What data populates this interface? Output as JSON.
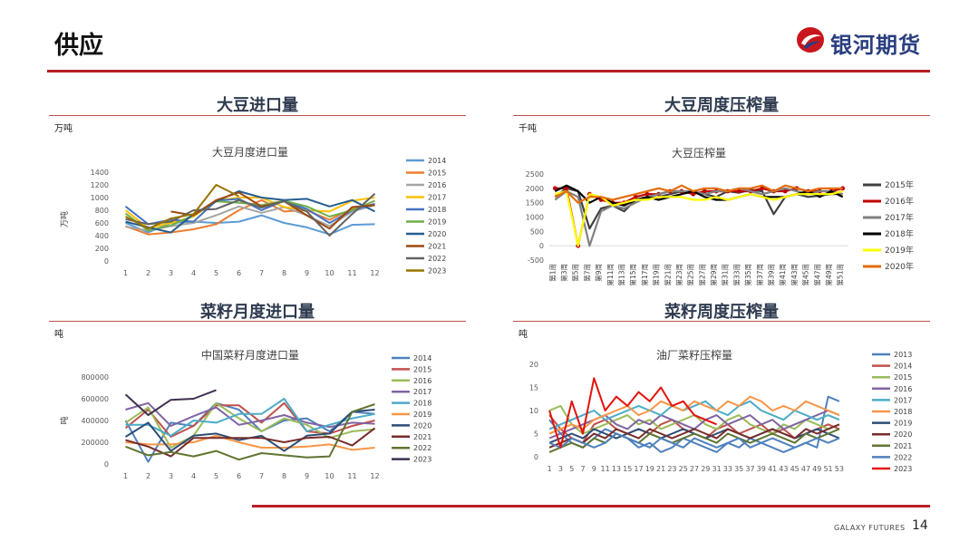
{
  "page": {
    "title": "供应",
    "brand": "银河期货",
    "footer_brand": "GALAXY FUTURES",
    "page_number": "14"
  },
  "colors": {
    "accent": "#b81e23",
    "logo_blue": "#2a3e80"
  },
  "panels": [
    {
      "heading": "大豆进口量",
      "unit": "万吨"
    },
    {
      "heading": "大豆周度压榨量",
      "unit": "千吨"
    },
    {
      "heading": "菜籽月度进口量",
      "unit": "吨"
    },
    {
      "heading": "菜籽周度压榨量",
      "unit": "吨"
    }
  ],
  "chart_data": [
    {
      "type": "line",
      "title": "大豆月度进口量",
      "ylabel": "万吨",
      "x": [
        1,
        2,
        3,
        4,
        5,
        6,
        7,
        8,
        9,
        10,
        11,
        12
      ],
      "ylim": [
        0,
        1400
      ],
      "yticks": [
        0,
        200,
        400,
        600,
        800,
        1000,
        1200,
        1400
      ],
      "legend": "right",
      "series": [
        {
          "name": "2014",
          "color": "#5b9bd5",
          "values": [
            600,
            450,
            600,
            620,
            600,
            620,
            720,
            600,
            530,
            420,
            570,
            580
          ]
        },
        {
          "name": "2015",
          "color": "#ed7d31",
          "values": [
            550,
            420,
            450,
            500,
            580,
            800,
            960,
            780,
            800,
            650,
            820,
            900
          ]
        },
        {
          "name": "2016",
          "color": "#a5a5a5",
          "values": [
            540,
            480,
            550,
            600,
            720,
            860,
            760,
            850,
            720,
            550,
            780,
            880
          ]
        },
        {
          "name": "2017",
          "color": "#ffc000",
          "values": [
            800,
            520,
            600,
            700,
            950,
            1000,
            1000,
            850,
            800,
            780,
            950,
            1000
          ]
        },
        {
          "name": "2018",
          "color": "#4472c4",
          "values": [
            860,
            580,
            650,
            620,
            950,
            980,
            800,
            950,
            820,
            600,
            800,
            900
          ]
        },
        {
          "name": "2019",
          "color": "#70ad47",
          "values": [
            750,
            480,
            560,
            720,
            940,
            920,
            880,
            950,
            860,
            700,
            800,
            950
          ]
        },
        {
          "name": "2020",
          "color": "#255e91",
          "values": [
            620,
            530,
            450,
            740,
            940,
            1100,
            1000,
            960,
            980,
            860,
            960,
            780
          ]
        },
        {
          "name": "2021",
          "color": "#9e480e",
          "values": [
            null,
            null,
            780,
            720,
            960,
            1080,
            860,
            940,
            720,
            510,
            850,
            880
          ]
        },
        {
          "name": "2022",
          "color": "#636363",
          "values": [
            660,
            580,
            620,
            800,
            820,
            960,
            840,
            940,
            780,
            400,
            740,
            1060
          ]
        },
        {
          "name": "2023",
          "color": "#997300",
          "values": [
            700,
            510,
            670,
            740,
            1200,
            1020,
            null,
            null,
            null,
            null,
            null,
            null
          ]
        }
      ]
    },
    {
      "type": "line",
      "title": "大豆压榨量",
      "xlabel": "",
      "categories": [
        "第1周",
        "第3周",
        "第5周",
        "第7周",
        "第9周",
        "第11周",
        "第13周",
        "第15周",
        "第17周",
        "第19周",
        "第21周",
        "第23周",
        "第25周",
        "第27周",
        "第29周",
        "第31周",
        "第33周",
        "第35周",
        "第37周",
        "第39周",
        "第41周",
        "第43周",
        "第45周",
        "第47周",
        "第49周",
        "第51周"
      ],
      "ylim": [
        -500,
        2500
      ],
      "yticks": [
        -500,
        0,
        500,
        1000,
        1500,
        2000,
        2500
      ],
      "legend": "right",
      "series": [
        {
          "name": "2015年",
          "color": "#404040",
          "values": [
            1700,
            2000,
            1900,
            600,
            1300,
            1400,
            1200,
            1600,
            1650,
            1700,
            1800,
            1900,
            1850,
            1800,
            1700,
            1900,
            1850,
            1950,
            1900,
            1100,
            1700,
            1800,
            1700,
            1750,
            1800,
            1800
          ]
        },
        {
          "name": "2016年",
          "color": "#c00000",
          "values": [
            2000,
            2000,
            0,
            1800,
            1600,
            1500,
            1500,
            1700,
            1800,
            1800,
            1900,
            1900,
            1800,
            1900,
            1900,
            1900,
            1900,
            1900,
            2000,
            1900,
            1900,
            2000,
            1900,
            1900,
            1900,
            2000
          ]
        },
        {
          "name": "2017年",
          "color": "#808080",
          "values": [
            1600,
            1900,
            1700,
            0,
            1200,
            1400,
            1300,
            1500,
            1700,
            1800,
            1900,
            1900,
            1900,
            1800,
            1900,
            1900,
            2000,
            1900,
            1800,
            1900,
            2000,
            1900,
            1800,
            1900,
            1900,
            1800
          ]
        },
        {
          "name": "2018年",
          "color": "#000000",
          "values": [
            1900,
            2100,
            1900,
            1500,
            1700,
            1500,
            1400,
            1600,
            1700,
            1600,
            1700,
            1800,
            1900,
            1700,
            1600,
            1600,
            1700,
            1800,
            1700,
            1700,
            1700,
            1800,
            1900,
            1700,
            1900,
            1700
          ]
        },
        {
          "name": "2019年",
          "color": "#ffff00",
          "values": [
            1800,
            1900,
            0,
            1800,
            1700,
            1400,
            1500,
            1600,
            1600,
            1700,
            1700,
            1700,
            1600,
            1600,
            1700,
            1600,
            1700,
            1800,
            1700,
            1600,
            1700,
            1800,
            1800,
            1800,
            1800,
            1900
          ]
        },
        {
          "name": "2020年",
          "color": "#e46c0a",
          "values": [
            1700,
            1900,
            1500,
            1700,
            1700,
            1600,
            1700,
            1800,
            1900,
            2000,
            1900,
            2100,
            1900,
            2000,
            2000,
            1900,
            2000,
            2000,
            2100,
            1900,
            2100,
            2000,
            1900,
            2000,
            2000,
            2000
          ]
        }
      ]
    },
    {
      "type": "line",
      "title": "中国菜籽月度进口量",
      "ylabel": "吨",
      "x": [
        1,
        2,
        3,
        4,
        5,
        6,
        7,
        8,
        9,
        10,
        11,
        12
      ],
      "ylim": [
        0,
        800000
      ],
      "yticks": [
        0,
        200000,
        400000,
        600000,
        800000
      ],
      "legend": "right",
      "series": [
        {
          "name": "2014",
          "color": "#4f81bd",
          "values": [
            400000,
            20000,
            380000,
            350000,
            560000,
            500000,
            300000,
            400000,
            420000,
            300000,
            480000,
            460000
          ]
        },
        {
          "name": "2015",
          "color": "#c0504d",
          "values": [
            330000,
            500000,
            250000,
            350000,
            540000,
            540000,
            380000,
            560000,
            300000,
            280000,
            350000,
            400000
          ]
        },
        {
          "name": "2016",
          "color": "#9bbb59",
          "values": [
            380000,
            520000,
            150000,
            260000,
            560000,
            420000,
            300000,
            420000,
            360000,
            240000,
            300000,
            320000
          ]
        },
        {
          "name": "2017",
          "color": "#8064a2",
          "values": [
            500000,
            560000,
            350000,
            440000,
            520000,
            360000,
            400000,
            450000,
            380000,
            340000,
            380000,
            370000
          ]
        },
        {
          "name": "2018",
          "color": "#4bacc6",
          "values": [
            360000,
            360000,
            260000,
            400000,
            380000,
            460000,
            460000,
            600000,
            300000,
            360000,
            420000,
            460000
          ]
        },
        {
          "name": "2019",
          "color": "#f79646",
          "values": [
            200000,
            180000,
            180000,
            200000,
            260000,
            200000,
            150000,
            150000,
            160000,
            180000,
            130000,
            150000
          ]
        },
        {
          "name": "2020",
          "color": "#2c4d75",
          "values": [
            250000,
            380000,
            120000,
            260000,
            280000,
            220000,
            260000,
            120000,
            260000,
            280000,
            480000,
            500000
          ]
        },
        {
          "name": "2021",
          "color": "#772c2a",
          "values": [
            220000,
            160000,
            70000,
            240000,
            240000,
            240000,
            240000,
            200000,
            240000,
            250000,
            170000,
            330000
          ]
        },
        {
          "name": "2022",
          "color": "#5f7530",
          "values": [
            160000,
            80000,
            110000,
            70000,
            120000,
            40000,
            100000,
            80000,
            60000,
            70000,
            480000,
            550000
          ]
        },
        {
          "name": "2023",
          "color": "#3f3151",
          "values": [
            640000,
            450000,
            590000,
            600000,
            680000,
            null,
            null,
            null,
            null,
            null,
            null,
            null
          ]
        }
      ]
    },
    {
      "type": "line",
      "title": "油厂菜籽压榨量",
      "x": [
        1,
        3,
        5,
        7,
        9,
        11,
        13,
        15,
        17,
        19,
        21,
        23,
        25,
        27,
        29,
        31,
        33,
        35,
        37,
        39,
        41,
        43,
        45,
        47,
        49,
        51,
        53
      ],
      "ylim": [
        0,
        20
      ],
      "yticks": [
        0,
        5,
        10,
        15,
        20
      ],
      "legend": "right",
      "series": [
        {
          "name": "2013",
          "color": "#4f81bd",
          "values": [
            8,
            5,
            3,
            2,
            4,
            6,
            5,
            4,
            2,
            3,
            1,
            2,
            4,
            3,
            2,
            1,
            3,
            2,
            4,
            3,
            2,
            1,
            2,
            3,
            2,
            13,
            12
          ]
        },
        {
          "name": "2014",
          "color": "#c0504d",
          "values": [
            9,
            6,
            4,
            3,
            7,
            8,
            6,
            5,
            6,
            5,
            7,
            8,
            6,
            5,
            4,
            6,
            7,
            5,
            6,
            7,
            5,
            6,
            4,
            5,
            6,
            7,
            6
          ]
        },
        {
          "name": "2015",
          "color": "#9bbb59",
          "values": [
            10,
            11,
            7,
            5,
            6,
            7,
            8,
            9,
            7,
            8,
            6,
            7,
            8,
            9,
            7,
            6,
            8,
            9,
            7,
            6,
            5,
            7,
            6,
            8,
            7,
            6,
            7
          ]
        },
        {
          "name": "2016",
          "color": "#8064a2",
          "values": [
            4,
            5,
            6,
            7,
            8,
            9,
            7,
            6,
            8,
            7,
            9,
            8,
            7,
            6,
            8,
            9,
            7,
            8,
            9,
            7,
            8,
            6,
            7,
            8,
            9,
            10,
            9
          ]
        },
        {
          "name": "2017",
          "color": "#4bacc6",
          "values": [
            6,
            7,
            8,
            9,
            10,
            8,
            9,
            10,
            11,
            10,
            9,
            11,
            10,
            11,
            12,
            10,
            9,
            11,
            12,
            10,
            9,
            8,
            10,
            9,
            8,
            9,
            8
          ]
        },
        {
          "name": "2018",
          "color": "#f79646",
          "values": [
            5,
            6,
            7,
            6,
            8,
            9,
            10,
            11,
            9,
            10,
            12,
            11,
            10,
            12,
            11,
            10,
            12,
            11,
            13,
            12,
            10,
            11,
            10,
            12,
            11,
            10,
            9
          ]
        },
        {
          "name": "2019",
          "color": "#2c4d75",
          "values": [
            3,
            4,
            5,
            4,
            6,
            5,
            4,
            5,
            6,
            5,
            4,
            5,
            6,
            5,
            4,
            5,
            6,
            5,
            4,
            5,
            6,
            5,
            4,
            5,
            6,
            5,
            4
          ]
        },
        {
          "name": "2020",
          "color": "#772c2a",
          "values": [
            2,
            3,
            4,
            3,
            5,
            4,
            6,
            5,
            4,
            6,
            5,
            4,
            5,
            6,
            5,
            4,
            6,
            5,
            4,
            5,
            6,
            5,
            4,
            6,
            5,
            6,
            7
          ]
        },
        {
          "name": "2021",
          "color": "#5f7530",
          "values": [
            1,
            2,
            3,
            2,
            4,
            3,
            5,
            4,
            3,
            5,
            4,
            3,
            4,
            5,
            4,
            3,
            5,
            4,
            3,
            4,
            5,
            4,
            3,
            5,
            4,
            5,
            6
          ]
        },
        {
          "name": "2022",
          "color": "#4f81bd",
          "values": [
            3,
            2,
            4,
            3,
            2,
            3,
            5,
            4,
            3,
            2,
            4,
            3,
            2,
            4,
            3,
            2,
            3,
            4,
            2,
            3,
            4,
            3,
            2,
            3,
            4,
            3,
            4
          ]
        },
        {
          "name": "2023",
          "color": "#e3120b",
          "values": [
            10,
            2,
            12,
            5,
            17,
            10,
            13,
            11,
            14,
            12,
            15,
            11,
            12,
            9,
            8,
            7,
            null,
            null,
            null,
            null,
            null,
            null,
            null,
            null,
            null,
            null,
            null
          ]
        }
      ]
    }
  ]
}
